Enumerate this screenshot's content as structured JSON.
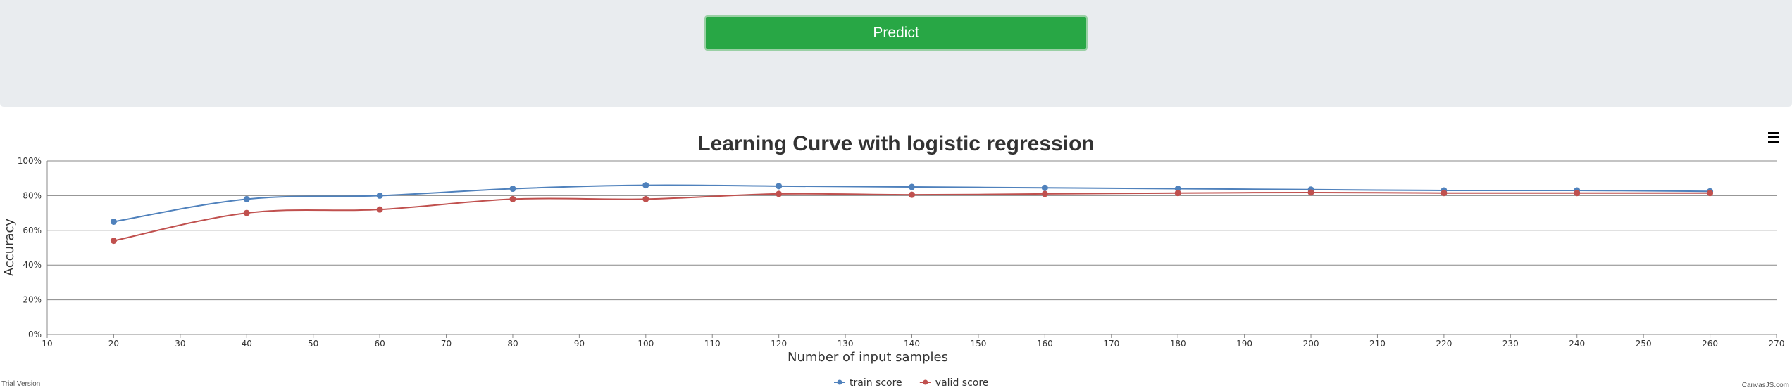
{
  "form": {
    "predict_label": "Predict"
  },
  "chart_data": {
    "type": "line",
    "title": "Learning Curve with logistic regression",
    "xlabel": "Number of input samples",
    "ylabel": "Accuracy",
    "xlim": [
      10,
      270
    ],
    "x_interval": 10,
    "ylim": [
      0,
      1
    ],
    "y_interval": 0.2,
    "y_format": "percent",
    "grid": "horizontal",
    "legend_position": "bottom-center",
    "x": [
      20,
      40,
      60,
      80,
      100,
      120,
      140,
      160,
      180,
      200,
      220,
      240,
      260
    ],
    "series": [
      {
        "name": "train score",
        "color": "#4f81bc",
        "values": [
          0.65,
          0.78,
          0.8,
          0.84,
          0.86,
          0.855,
          0.85,
          0.845,
          0.84,
          0.835,
          0.83,
          0.83,
          0.825
        ]
      },
      {
        "name": "valid score",
        "color": "#c0504e",
        "values": [
          0.54,
          0.7,
          0.72,
          0.78,
          0.78,
          0.81,
          0.805,
          0.81,
          0.815,
          0.818,
          0.815,
          0.815,
          0.815
        ]
      }
    ]
  },
  "footer": {
    "trial_label": "Trial Version",
    "credit_label": "CanvasJS.com"
  }
}
